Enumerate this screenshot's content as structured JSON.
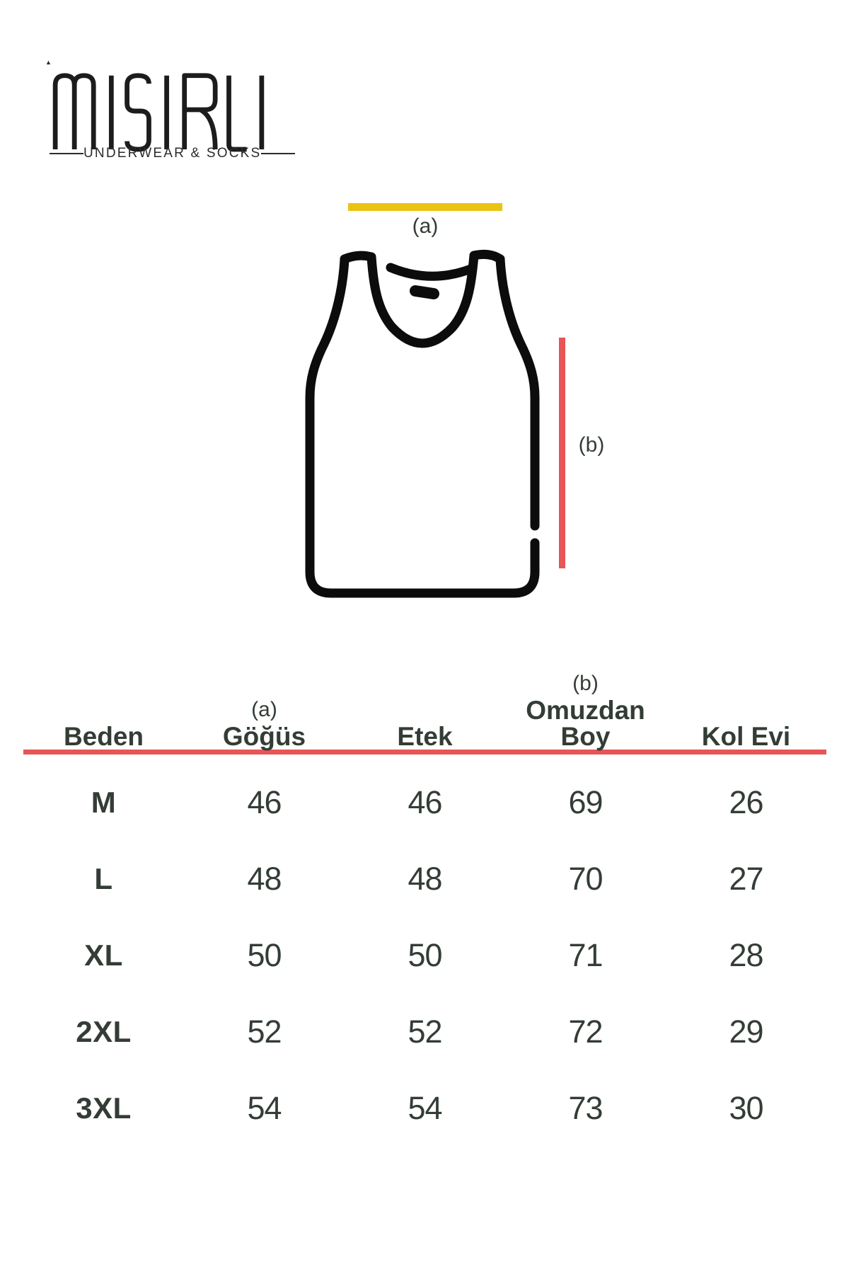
{
  "brand": {
    "name": "MISIRLI",
    "tagline": "UNDERWEAR & SOCKS"
  },
  "diagram": {
    "chest_label": "(a)",
    "length_label": "(b)"
  },
  "table": {
    "columns": [
      {
        "sub": "",
        "label": "Beden"
      },
      {
        "sub": "(a)",
        "label": "Göğüs"
      },
      {
        "sub": "",
        "label": "Etek"
      },
      {
        "sub": "(b)",
        "label": "Omuzdan Boy"
      },
      {
        "sub": "",
        "label": "Kol Evi"
      }
    ],
    "rows": [
      {
        "size": "M",
        "values": [
          "46",
          "46",
          "69",
          "26"
        ]
      },
      {
        "size": "L",
        "values": [
          "48",
          "48",
          "70",
          "27"
        ]
      },
      {
        "size": "XL",
        "values": [
          "50",
          "50",
          "71",
          "28"
        ]
      },
      {
        "size": "2XL",
        "values": [
          "52",
          "52",
          "72",
          "29"
        ]
      },
      {
        "size": "3XL",
        "values": [
          "54",
          "54",
          "73",
          "30"
        ]
      }
    ]
  },
  "colors": {
    "accent_red": "#e85556",
    "accent_yellow": "#e9c412",
    "text": "#333d35",
    "ink": "#0c0c0c"
  }
}
